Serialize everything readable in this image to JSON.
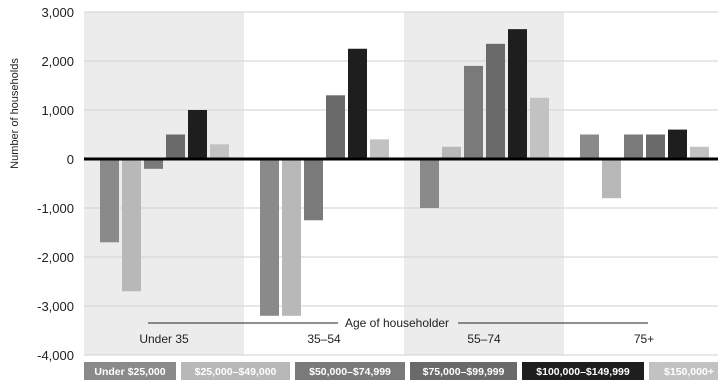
{
  "chart_data": {
    "type": "bar",
    "xlabel": "Age of householder",
    "ylabel": "Number of households",
    "ylim": [
      -4000,
      3000
    ],
    "yticks": [
      3000,
      2000,
      1000,
      0,
      -1000,
      -2000,
      -3000,
      -4000
    ],
    "ytick_labels": [
      "3,000",
      "2,000",
      "1,000",
      "0",
      "-1,000",
      "-2,000",
      "-3,000",
      "-4,000"
    ],
    "grid": "horizontal",
    "legend_position": "bottom",
    "categories": [
      "Under 35",
      "35–54",
      "55–74",
      "75+"
    ],
    "series": [
      {
        "name": "Under $25,000",
        "color": "#8a8a8a",
        "values": [
          -1700,
          -3200,
          -1000,
          500
        ]
      },
      {
        "name": "$25,000–$49,000",
        "color": "#b8b8b8",
        "values": [
          -2700,
          -3200,
          250,
          -800
        ]
      },
      {
        "name": "$50,000–$74,999",
        "color": "#7a7a7a",
        "values": [
          -200,
          -1250,
          1900,
          500
        ]
      },
      {
        "name": "$75,000–$99,999",
        "color": "#6a6a6a",
        "values": [
          500,
          1300,
          2350,
          500
        ]
      },
      {
        "name": "$100,000–$149,999",
        "color": "#1e1e1e",
        "values": [
          1000,
          2250,
          2650,
          600
        ]
      },
      {
        "name": "$150,000+",
        "color": "#c2c2c2",
        "values": [
          300,
          400,
          1250,
          250
        ]
      }
    ],
    "legend_labels": [
      "Under $25,000",
      "$25,000–$49,000",
      "$50,000–$74,999",
      "$75,000–$99,999",
      "$100,000–$149,999",
      "$150,000+"
    ]
  }
}
